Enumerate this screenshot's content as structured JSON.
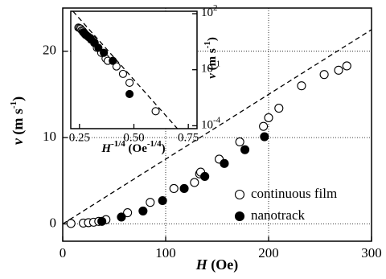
{
  "chart_data": [
    {
      "type": "scatter",
      "xlabel": [
        "H",
        " (Oe)"
      ],
      "ylabel": [
        "v",
        " (m s",
        "-1",
        ")"
      ],
      "xlim": [
        0,
        300
      ],
      "ylim": [
        -2,
        25
      ],
      "xticks": [
        0,
        100,
        200,
        300
      ],
      "yticks": [
        0,
        10,
        20
      ],
      "grid": true,
      "legend": "lower right",
      "series": [
        {
          "name": "continuous film",
          "marker": "open",
          "color": "#000000",
          "x": [
            8,
            20,
            25,
            30,
            35,
            42,
            63,
            85,
            108,
            128,
            133,
            134,
            152,
            172,
            195,
            200,
            210,
            232,
            254,
            268,
            276
          ],
          "values": [
            0.05,
            0.1,
            0.15,
            0.2,
            0.3,
            0.5,
            1.3,
            2.5,
            4.1,
            4.8,
            5.8,
            6.0,
            7.5,
            9.5,
            11.3,
            12.3,
            13.4,
            16.0,
            17.3,
            17.8,
            18.3
          ]
        },
        {
          "name": "nanotrack",
          "marker": "filled",
          "color": "#000000",
          "x": [
            38,
            57,
            78,
            97,
            118,
            138,
            157,
            177,
            196
          ],
          "values": [
            0.3,
            0.8,
            1.5,
            2.7,
            4.1,
            5.5,
            7.0,
            8.6,
            10.1
          ]
        }
      ],
      "fit": {
        "x": [
          0,
          300
        ],
        "values": [
          0,
          22.5
        ]
      }
    },
    {
      "type": "scatter",
      "xlabel": [
        "H",
        "-1/4",
        " (Oe",
        "-1/4",
        ")"
      ],
      "ylabel": [
        "v",
        " (m s",
        "-1",
        ")"
      ],
      "xlim": [
        0.21,
        0.79
      ],
      "ylim": [
        7e-05,
        135
      ],
      "yscale": "log",
      "xticks": [
        0.25,
        {
          "value": 0.5,
          "label": "0.50"
        },
        0.75
      ],
      "yticks": [
        {
          "value": 100,
          "label": "10",
          "exp": "2"
        },
        {
          "value": 0.1,
          "label": "10",
          "exp": "-1"
        },
        {
          "value": 0.0001,
          "label": "10",
          "exp": "-4"
        }
      ],
      "grid": false,
      "series": [
        {
          "name": "continuous film",
          "marker": "open",
          "color": "#000000",
          "x": [
            0.245,
            0.25,
            0.255,
            0.26,
            0.265,
            0.27,
            0.275,
            0.28,
            0.29,
            0.3,
            0.31,
            0.32,
            0.33,
            0.35,
            0.37,
            0.38,
            0.42,
            0.45,
            0.48,
            0.6
          ],
          "values": [
            18,
            17,
            16,
            13,
            12,
            10,
            8,
            7,
            6,
            5,
            4,
            2.8,
            1.5,
            0.8,
            0.4,
            0.3,
            0.15,
            0.06,
            0.02,
            0.0006
          ]
        },
        {
          "name": "nanotrack",
          "marker": "filled",
          "color": "#000000",
          "x": [
            0.267,
            0.275,
            0.282,
            0.292,
            0.303,
            0.318,
            0.337,
            0.362,
            0.403,
            0.48
          ],
          "values": [
            10.1,
            8.6,
            7.0,
            5.5,
            4.1,
            2.7,
            1.5,
            0.8,
            0.3,
            0.005
          ]
        }
      ],
      "fit": {
        "x": [
          0.22,
          0.7
        ],
        "values": [
          135,
          7e-05
        ]
      }
    }
  ]
}
